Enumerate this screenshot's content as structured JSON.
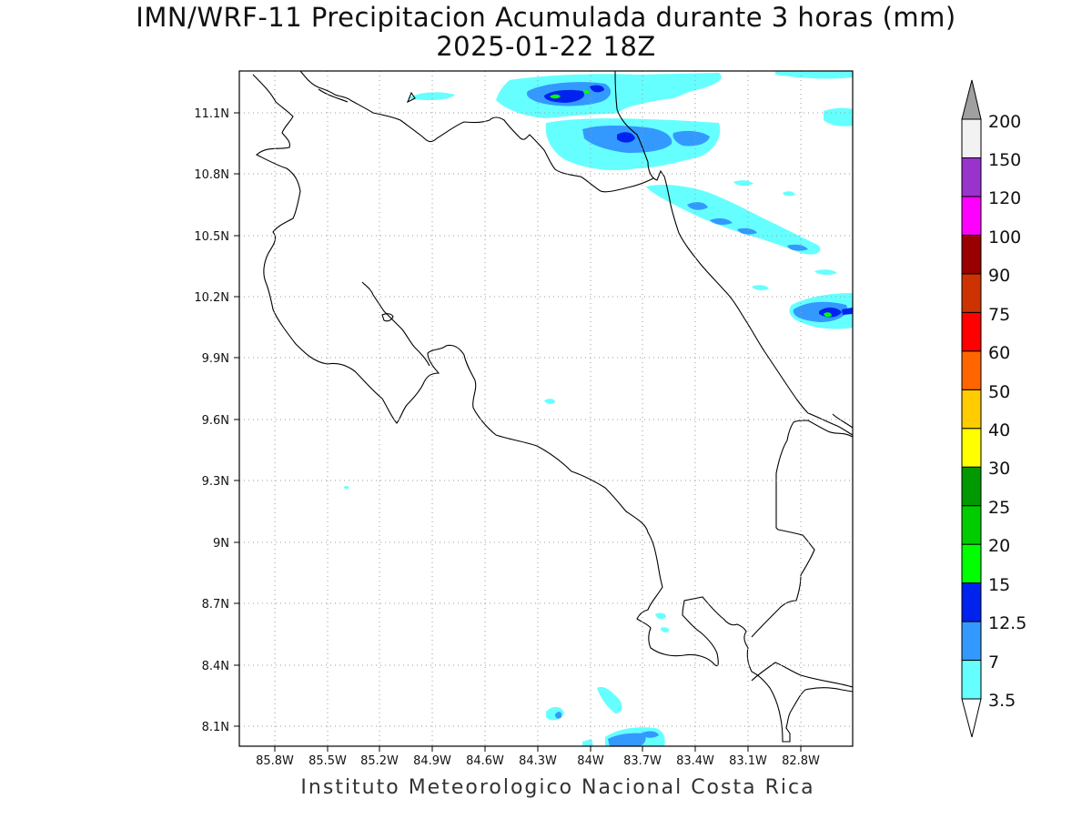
{
  "title": {
    "line1": "IMN/WRF-11 Precipitacion Acumulada durante 3 horas (mm)",
    "line2": "2025-01-22 18Z"
  },
  "footer": "Instituto Meteorologico Nacional Costa Rica",
  "map": {
    "lon_range": [
      -86.05,
      -82.55
    ],
    "lat_range": [
      8.0,
      11.3
    ],
    "lon_ticks": [
      "85.8W",
      "85.5W",
      "85.2W",
      "84.9W",
      "84.6W",
      "84.3W",
      "84W",
      "83.7W",
      "83.4W",
      "83.1W",
      "82.8W"
    ],
    "lat_ticks": [
      "11.1N",
      "10.8N",
      "10.5N",
      "10.2N",
      "9.9N",
      "9.6N",
      "9.3N",
      "9N",
      "8.7N",
      "8.4N",
      "8.1N"
    ],
    "grid": "dotted"
  },
  "colorbar": {
    "labels": [
      "3.5",
      "7",
      "12.5",
      "15",
      "20",
      "25",
      "30",
      "40",
      "50",
      "60",
      "75",
      "90",
      "100",
      "120",
      "150",
      "200"
    ],
    "colors": [
      "#66ffff",
      "#3399ff",
      "#0022ee",
      "#00ff00",
      "#00cc00",
      "#009900",
      "#ffff00",
      "#ffcc00",
      "#ff6600",
      "#ff0000",
      "#cc3300",
      "#990000",
      "#ff00ff",
      "#9933cc",
      "#f2f2f2",
      "#a0a0a0"
    ]
  }
}
